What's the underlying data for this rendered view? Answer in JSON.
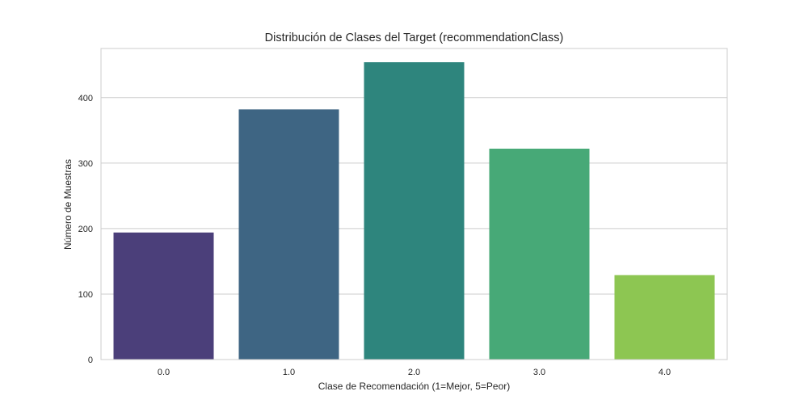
{
  "chart_data": {
    "type": "bar",
    "title": "Distribución de Clases del Target (recommendationClass)",
    "xlabel": "Clase de Recomendación (1=Mejor, 5=Peor)",
    "ylabel": "Número de Muestras",
    "categories": [
      "0.0",
      "1.0",
      "2.0",
      "3.0",
      "4.0"
    ],
    "values": [
      194,
      382,
      454,
      322,
      129
    ],
    "ylim": [
      0,
      475
    ],
    "yticks": [
      0,
      100,
      200,
      300,
      400
    ],
    "grid": true,
    "colors": [
      "#4b3f7a",
      "#3e6583",
      "#2e857d",
      "#47a977",
      "#8dc652"
    ],
    "grid_color": "#cccccc",
    "spine_color": "#cccccc"
  }
}
